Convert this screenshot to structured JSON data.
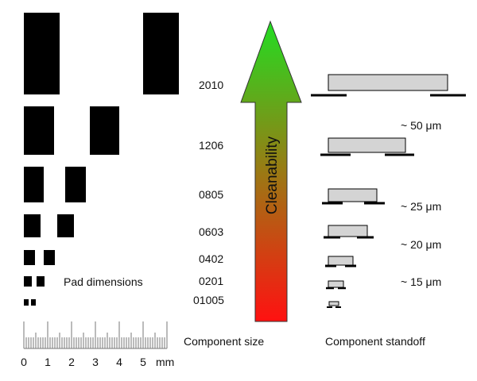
{
  "pad_dimensions_label": "Pad dimensions",
  "component_size_label": "Component size",
  "component_standoff_label": "Component standoff",
  "cleanability_label": "Cleanability",
  "packages": [
    {
      "size": "2010"
    },
    {
      "size": "1206"
    },
    {
      "size": "0805"
    },
    {
      "size": "0603"
    },
    {
      "size": "0402"
    },
    {
      "size": "0201"
    },
    {
      "size": "01005"
    }
  ],
  "standoffs": [
    "~ 50 μm",
    "~ 25 μm",
    "~ 20 μm",
    "~ 15 μm"
  ],
  "ruler": {
    "ticks": [
      "0",
      "1",
      "2",
      "3",
      "4",
      "5"
    ],
    "unit": "mm"
  },
  "colors": {
    "pad": "#000000",
    "body_fill": "#d4d4d4",
    "arrow_top": "#22dd22",
    "arrow_bottom": "#ff1111"
  }
}
